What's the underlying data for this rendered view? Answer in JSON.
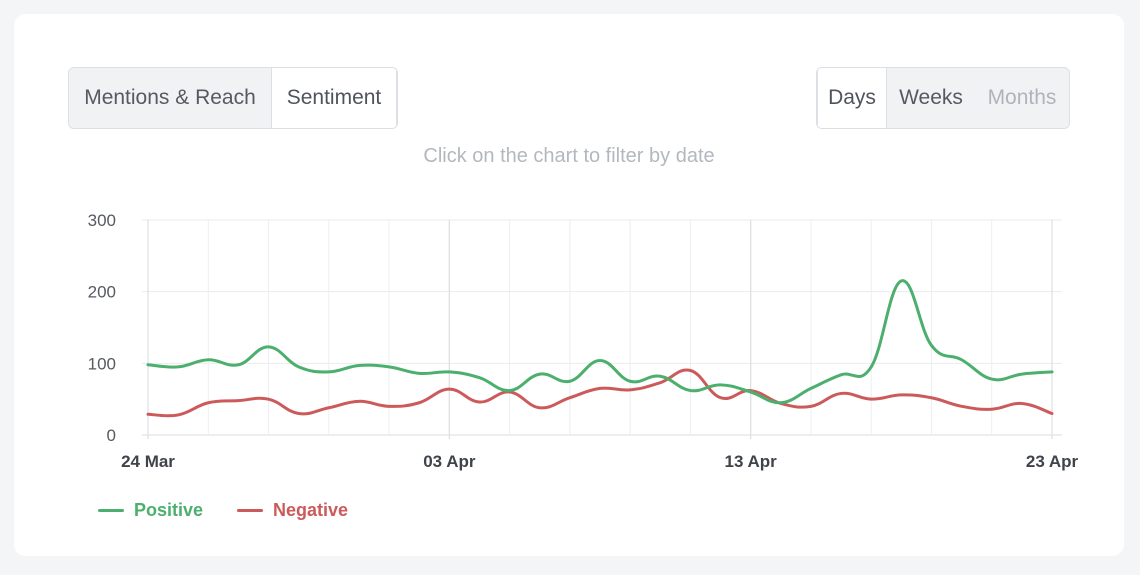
{
  "tabs_left": [
    {
      "label": "Mentions & Reach",
      "active": false
    },
    {
      "label": "Sentiment",
      "active": true
    }
  ],
  "tabs_right": [
    {
      "label": "Days",
      "active": true
    },
    {
      "label": "Weeks",
      "active": false
    },
    {
      "label": "Months",
      "active": false,
      "disabled": true
    }
  ],
  "hint": "Click on the chart to filter by date",
  "chart_data": {
    "type": "line",
    "x_start": "24 Mar",
    "x_tick_labels": [
      "24 Mar",
      "03 Apr",
      "13 Apr",
      "23 Apr"
    ],
    "x_tick_every": 10,
    "yticks": [
      0,
      100,
      200,
      300
    ],
    "ylim": [
      0,
      300
    ],
    "grid": true,
    "legend_position": "bottom-left",
    "series": [
      {
        "name": "Positive",
        "color": "#4caf6e",
        "values": [
          98,
          95,
          105,
          98,
          123,
          95,
          88,
          97,
          95,
          86,
          88,
          80,
          62,
          85,
          75,
          104,
          75,
          82,
          62,
          70,
          60,
          45,
          65,
          84,
          95,
          215,
          125,
          105,
          78,
          85,
          88
        ]
      },
      {
        "name": "Negative",
        "color": "#cc5a5a",
        "values": [
          29,
          28,
          45,
          48,
          50,
          30,
          38,
          47,
          40,
          45,
          64,
          46,
          60,
          38,
          52,
          65,
          63,
          73,
          90,
          52,
          62,
          44,
          40,
          58,
          50,
          56,
          52,
          40,
          36,
          44,
          30
        ]
      }
    ]
  }
}
